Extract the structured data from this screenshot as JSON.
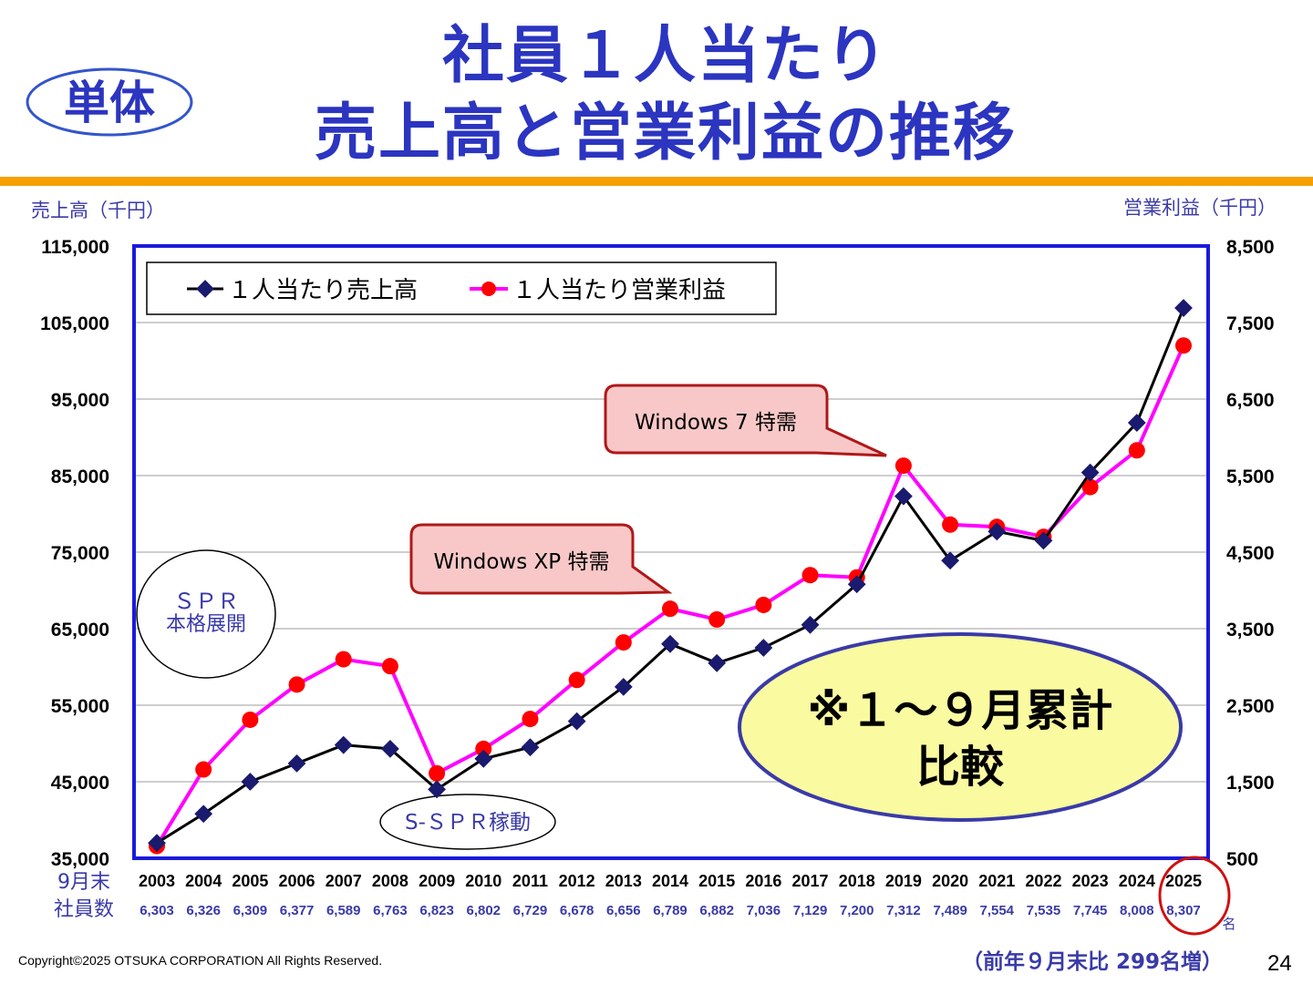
{
  "header": {
    "badge": "単体",
    "title_line1": "社員１人当たり",
    "title_line2": "売上高と営業利益の推移",
    "accent_color": "#f5a000"
  },
  "footer": {
    "copyright": "Copyright©2025 OTSUKA CORPORATION All Rights Reserved.",
    "page_number": "24",
    "employee_note": "（前年９月末比 299名増）"
  },
  "annotations": {
    "spr_line1": "ＳＰＲ",
    "spr_line2": "本格展開",
    "sspr": "S-ＳＰＲ稼動",
    "win_xp": "Windows XP 特需",
    "win_7": "Windows 7 特需",
    "period_line1": "※１～９月累計",
    "period_line2": "比較"
  },
  "employees": {
    "label_line1": "9月末",
    "label_line2": "社員数",
    "unit": "名",
    "counts": [
      "6,303",
      "6,326",
      "6,309",
      "6,377",
      "6,589",
      "6,763",
      "6,823",
      "6,802",
      "6,729",
      "6,678",
      "6,656",
      "6,789",
      "6,882",
      "7,036",
      "7,129",
      "7,200",
      "7,312",
      "7,489",
      "7,554",
      "7,535",
      "7,745",
      "8,008",
      "8,307"
    ]
  },
  "chart_data": {
    "type": "line",
    "ylabel_left": "売上高（千円）",
    "ylabel_right": "営業利益（千円）",
    "ylim_left": [
      35000,
      115000
    ],
    "ylim_right": [
      500,
      8500
    ],
    "yticks_left": [
      "35,000",
      "45,000",
      "55,000",
      "65,000",
      "75,000",
      "85,000",
      "95,000",
      "105,000",
      "115,000"
    ],
    "yticks_right": [
      "500",
      "1,500",
      "2,500",
      "3,500",
      "4,500",
      "5,500",
      "6,500",
      "7,500",
      "8,500"
    ],
    "grid": true,
    "legend_position": "top-left",
    "categories": [
      "2003",
      "2004",
      "2005",
      "2006",
      "2007",
      "2008",
      "2009",
      "2010",
      "2011",
      "2012",
      "2013",
      "2014",
      "2015",
      "2016",
      "2017",
      "2018",
      "2019",
      "2020",
      "2021",
      "2022",
      "2023",
      "2024",
      "2025"
    ],
    "series": [
      {
        "name": "１人当たり売上高",
        "axis": "left",
        "color": "#000000",
        "marker_color": "#1a1a6e",
        "marker": "diamond",
        "values": [
          37000,
          40800,
          45000,
          47400,
          49800,
          49300,
          44000,
          48000,
          49500,
          52900,
          57400,
          63000,
          60500,
          62500,
          65500,
          70800,
          82300,
          73900,
          77700,
          76500,
          85400,
          91900,
          106900
        ]
      },
      {
        "name": "１人当たり営業利益",
        "axis": "right",
        "color": "#ff00ff",
        "marker_color": "#ff0000",
        "marker": "circle",
        "values": [
          660,
          1660,
          2310,
          2770,
          3100,
          3010,
          1610,
          1930,
          2320,
          2830,
          3320,
          3760,
          3620,
          3810,
          4200,
          4170,
          5630,
          4860,
          4830,
          4700,
          5350,
          5830,
          7200
        ]
      }
    ]
  }
}
